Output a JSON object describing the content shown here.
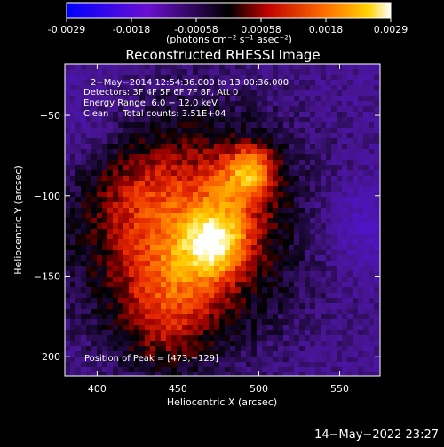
{
  "colorbar": {
    "tick_labels": [
      "-0.0029",
      "-0.0018",
      "-0.00058",
      "0.00058",
      "0.0018",
      "0.0029"
    ],
    "unit_label": "(photons cm⁻² s⁻¹ asec⁻²)",
    "range": [
      -0.0029,
      0.0029
    ],
    "colormap": "blue-purple-black-red-orange-yellow-white"
  },
  "chart_data": {
    "type": "heatmap",
    "title": "Reconstructed RHESSI Image",
    "xlabel": "Heliocentric X (arcsec)",
    "ylabel": "Heliocentric Y (arcsec)",
    "xlim": [
      380,
      575
    ],
    "ylim": [
      -212,
      -18
    ],
    "x_ticks": [
      400,
      450,
      500,
      550
    ],
    "x_tick_labels": [
      "400",
      "450",
      "500",
      "550"
    ],
    "y_ticks": [
      -50,
      -100,
      -150,
      -200
    ],
    "y_tick_labels": [
      "−50",
      "−100",
      "−150",
      "−200"
    ],
    "info_lines": [
      "2−May−2014 12:54:36.000 to 13:00:36.000",
      "Detectors: 3F 4F 5F 6F 7F 8F, Att 0",
      "Energy Range: 6.0 − 12.0 keV",
      "Clean     Total counts: 3.51E+04"
    ],
    "peak_label": "Position of Peak = [473,−129]",
    "peak_position": [
      473,
      -129
    ],
    "grid": false
  },
  "footer": {
    "date": "14−May−2022 23:27"
  }
}
